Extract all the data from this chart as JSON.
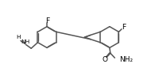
{
  "bg_color": "#ffffff",
  "line_color": "#555555",
  "text_color": "#000000",
  "lw": 1.1,
  "fs": 6.2,
  "off": 0.022,
  "xlim": [
    0.3,
    10.2
  ],
  "ylim": [
    0.5,
    5.5
  ]
}
